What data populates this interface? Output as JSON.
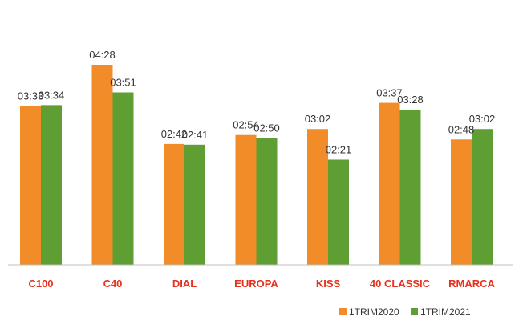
{
  "chart_data": {
    "type": "bar",
    "title": "",
    "xlabel": "",
    "ylabel": "",
    "categories": [
      "C100",
      "C40",
      "DIAL",
      "EUROPA",
      "KISS",
      "40 CLASSIC",
      "RMARCA"
    ],
    "series": [
      {
        "name": "1TRIM2020",
        "color": "#F28C28",
        "labels": [
          "03:33",
          "04:28",
          "02:42",
          "02:54",
          "03:02",
          "03:37",
          "02:48"
        ],
        "values": [
          213,
          268,
          162,
          174,
          182,
          217,
          168
        ]
      },
      {
        "name": "1TRIM2021",
        "color": "#5E9E32",
        "labels": [
          "03:34",
          "03:51",
          "02:41",
          "02:50",
          "02:21",
          "03:28",
          "03:02"
        ],
        "values": [
          214,
          231,
          161,
          170,
          141,
          208,
          182
        ]
      }
    ],
    "value_unit": "seconds (mm:ss)",
    "ylim": [
      0,
      268
    ],
    "grid": false,
    "legend_position": "bottom-right",
    "category_label_color": "#E8301C",
    "axis_color": "#BFBFBF"
  }
}
